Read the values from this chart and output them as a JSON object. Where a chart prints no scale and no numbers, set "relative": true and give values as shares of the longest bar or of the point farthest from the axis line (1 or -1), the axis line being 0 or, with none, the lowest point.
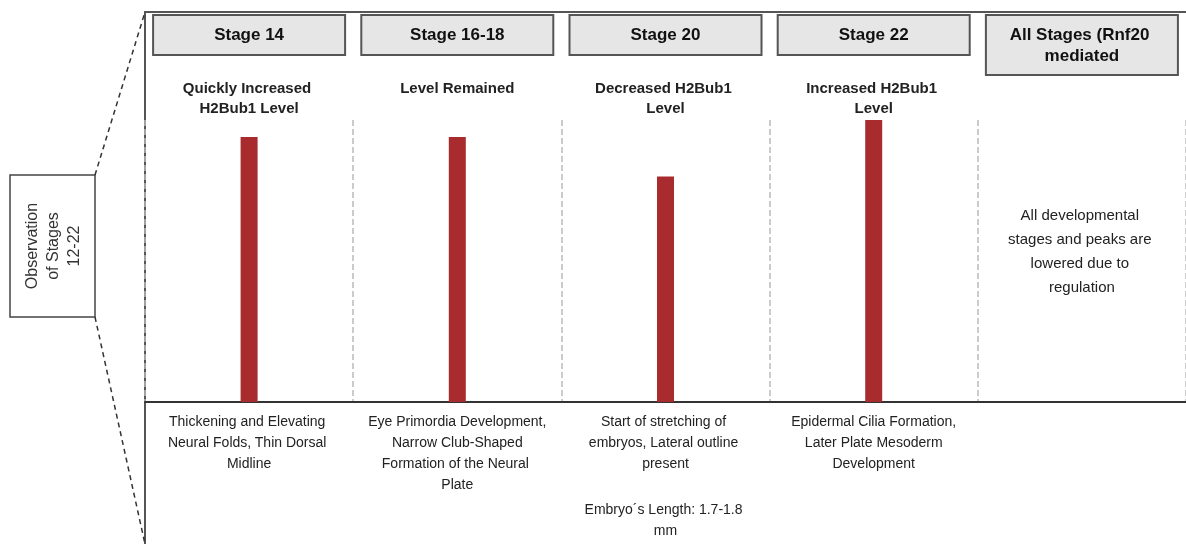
{
  "chart_data": {
    "type": "bar",
    "relative": true,
    "grid": "x",
    "categories": [
      "Stage 14",
      "Stage 16-18",
      "Stage 20",
      "Stage 22",
      "All Stages (Rnf20 mediated"
    ],
    "series": [
      {
        "color": "#a82c2e",
        "values": [
          0.94,
          0.94,
          0.8,
          1,
          null
        ]
      }
    ],
    "annotations": [
      "Observation of Stages 12-22",
      "Quickly Increased H2Bub1 Level",
      "Thickening and Elevating Neural Folds, Thin Dorsal Midline",
      "Level Remained",
      "Eye Primordia Development, Narrow Club-Shaped Formation of the Neural Plate",
      "Decreased H2Bub1 Level",
      "Start of stretching of embryos, Lateral outline present",
      "Embryo´s Length: 1.7-1.8 mm",
      "Increased H2Bub1 Level",
      "Epidermal Cilia Formation, Later Plate Mesoderm Development",
      "All developmental stages and peaks are lowered due to regulation"
    ]
  }
}
